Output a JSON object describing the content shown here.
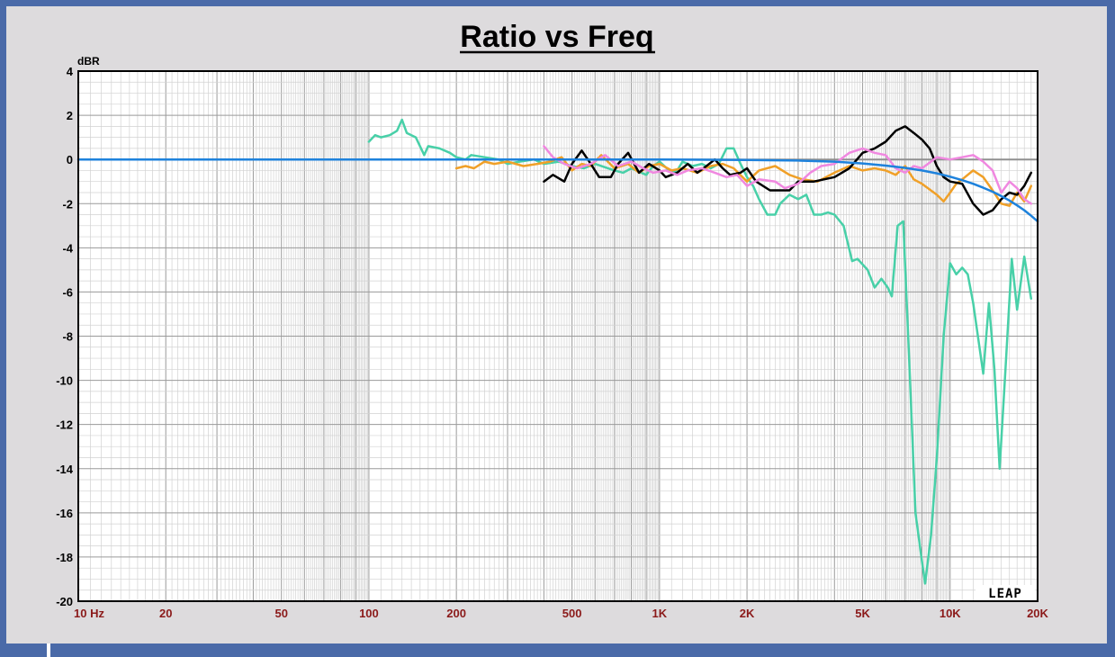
{
  "chart_data": {
    "type": "line",
    "title": "Ratio vs Freq",
    "y_unit": "dBR",
    "x_scale": "log",
    "xlim": [
      10,
      20000
    ],
    "ylim": [
      -20,
      4
    ],
    "grid": true,
    "y_ticks": [
      "4",
      "2",
      "0",
      "-2",
      "-4",
      "-6",
      "-8",
      "-10",
      "-12",
      "-14",
      "-16",
      "-18",
      "-20"
    ],
    "x_ticks": [
      {
        "label": "10  Hz",
        "value": 10
      },
      {
        "label": "20",
        "value": 20
      },
      {
        "label": "50",
        "value": 50
      },
      {
        "label": "100",
        "value": 100
      },
      {
        "label": "200",
        "value": 200
      },
      {
        "label": "500",
        "value": 500
      },
      {
        "label": "1K",
        "value": 1000
      },
      {
        "label": "2K",
        "value": 2000
      },
      {
        "label": "5K",
        "value": 5000
      },
      {
        "label": "10K",
        "value": 10000
      },
      {
        "label": "20K",
        "value": 20000
      }
    ],
    "logo": "LEAP",
    "series": [
      {
        "color": "#909090",
        "points": [
          [
            10,
            0
          ],
          [
            20000,
            0
          ]
        ]
      },
      {
        "color": "#48d0a8",
        "points": [
          [
            100,
            0.8
          ],
          [
            105,
            1.1
          ],
          [
            110,
            1.0
          ],
          [
            118,
            1.1
          ],
          [
            125,
            1.3
          ],
          [
            130,
            1.8
          ],
          [
            135,
            1.2
          ],
          [
            145,
            1.0
          ],
          [
            155,
            0.2
          ],
          [
            160,
            0.6
          ],
          [
            175,
            0.5
          ],
          [
            190,
            0.3
          ],
          [
            200,
            0.1
          ],
          [
            215,
            0
          ],
          [
            225,
            0.2
          ],
          [
            250,
            0.1
          ],
          [
            280,
            0
          ],
          [
            300,
            -0.2
          ],
          [
            330,
            -0.1
          ],
          [
            370,
            0
          ],
          [
            400,
            -0.2
          ],
          [
            450,
            -0.1
          ],
          [
            500,
            -0.3
          ],
          [
            550,
            -0.4
          ],
          [
            600,
            -0.2
          ],
          [
            700,
            -0.5
          ],
          [
            750,
            -0.6
          ],
          [
            800,
            -0.4
          ],
          [
            900,
            -0.7
          ],
          [
            950,
            -0.3
          ],
          [
            1000,
            -0.1
          ],
          [
            1100,
            -0.6
          ],
          [
            1150,
            -0.5
          ],
          [
            1200,
            -0.1
          ],
          [
            1300,
            -0.3
          ],
          [
            1400,
            -0.2
          ],
          [
            1500,
            -0.4
          ],
          [
            1600,
            -0.2
          ],
          [
            1700,
            0.5
          ],
          [
            1800,
            0.5
          ],
          [
            1900,
            -0.2
          ],
          [
            2000,
            -0.8
          ],
          [
            2100,
            -1.2
          ],
          [
            2200,
            -1.8
          ],
          [
            2350,
            -2.5
          ],
          [
            2500,
            -2.5
          ],
          [
            2600,
            -2.0
          ],
          [
            2800,
            -1.6
          ],
          [
            3000,
            -1.8
          ],
          [
            3200,
            -1.6
          ],
          [
            3400,
            -2.5
          ],
          [
            3600,
            -2.5
          ],
          [
            3800,
            -2.4
          ],
          [
            4000,
            -2.5
          ],
          [
            4300,
            -3.0
          ],
          [
            4600,
            -4.6
          ],
          [
            4800,
            -4.5
          ],
          [
            5200,
            -5.0
          ],
          [
            5500,
            -5.8
          ],
          [
            5800,
            -5.4
          ],
          [
            6100,
            -5.8
          ],
          [
            6300,
            -6.2
          ],
          [
            6600,
            -3.0
          ],
          [
            6900,
            -2.8
          ],
          [
            7200,
            -8.5
          ],
          [
            7600,
            -16.0
          ],
          [
            8000,
            -18.2
          ],
          [
            8200,
            -19.2
          ],
          [
            8600,
            -17.0
          ],
          [
            9000,
            -13.5
          ],
          [
            9500,
            -8.0
          ],
          [
            10000,
            -4.7
          ],
          [
            10500,
            -5.2
          ],
          [
            11000,
            -4.9
          ],
          [
            11500,
            -5.2
          ],
          [
            12000,
            -6.5
          ],
          [
            13000,
            -9.7
          ],
          [
            13600,
            -6.5
          ],
          [
            14200,
            -9.5
          ],
          [
            14800,
            -14.0
          ],
          [
            15500,
            -9.5
          ],
          [
            16300,
            -4.5
          ],
          [
            17000,
            -6.8
          ],
          [
            18000,
            -4.4
          ],
          [
            19000,
            -6.3
          ]
        ]
      },
      {
        "color": "#f0a028",
        "points": [
          [
            200,
            -0.4
          ],
          [
            215,
            -0.3
          ],
          [
            230,
            -0.4
          ],
          [
            250,
            -0.1
          ],
          [
            270,
            -0.2
          ],
          [
            300,
            -0.1
          ],
          [
            340,
            -0.3
          ],
          [
            380,
            -0.2
          ],
          [
            420,
            -0.1
          ],
          [
            460,
            0.1
          ],
          [
            500,
            -0.5
          ],
          [
            540,
            -0.2
          ],
          [
            580,
            -0.3
          ],
          [
            630,
            0.2
          ],
          [
            700,
            -0.4
          ],
          [
            780,
            -0.2
          ],
          [
            850,
            -0.6
          ],
          [
            920,
            -0.3
          ],
          [
            1000,
            -0.2
          ],
          [
            1100,
            -0.5
          ],
          [
            1200,
            -0.4
          ],
          [
            1350,
            -0.6
          ],
          [
            1500,
            -0.3
          ],
          [
            1650,
            -0.2
          ],
          [
            1800,
            -0.4
          ],
          [
            2000,
            -1.0
          ],
          [
            2200,
            -0.5
          ],
          [
            2500,
            -0.3
          ],
          [
            2800,
            -0.7
          ],
          [
            3100,
            -0.9
          ],
          [
            3500,
            -1.0
          ],
          [
            4000,
            -0.6
          ],
          [
            4500,
            -0.3
          ],
          [
            5000,
            -0.5
          ],
          [
            5500,
            -0.4
          ],
          [
            6000,
            -0.5
          ],
          [
            6500,
            -0.7
          ],
          [
            7000,
            -0.3
          ],
          [
            7500,
            -0.9
          ],
          [
            8000,
            -1.1
          ],
          [
            9000,
            -1.6
          ],
          [
            9500,
            -1.9
          ],
          [
            10000,
            -1.5
          ],
          [
            10500,
            -1.1
          ],
          [
            11000,
            -0.9
          ],
          [
            12000,
            -0.5
          ],
          [
            13000,
            -0.8
          ],
          [
            14000,
            -1.4
          ],
          [
            15000,
            -2.0
          ],
          [
            16000,
            -2.1
          ],
          [
            17000,
            -1.5
          ],
          [
            18000,
            -1.9
          ],
          [
            19000,
            -1.2
          ]
        ]
      },
      {
        "color": "#000000",
        "points": [
          [
            400,
            -1.0
          ],
          [
            430,
            -0.7
          ],
          [
            470,
            -1.0
          ],
          [
            500,
            -0.2
          ],
          [
            540,
            0.4
          ],
          [
            580,
            -0.2
          ],
          [
            620,
            -0.8
          ],
          [
            680,
            -0.8
          ],
          [
            720,
            -0.2
          ],
          [
            780,
            0.3
          ],
          [
            850,
            -0.6
          ],
          [
            920,
            -0.2
          ],
          [
            1000,
            -0.5
          ],
          [
            1050,
            -0.8
          ],
          [
            1150,
            -0.6
          ],
          [
            1250,
            -0.2
          ],
          [
            1350,
            -0.6
          ],
          [
            1450,
            -0.3
          ],
          [
            1550,
            0
          ],
          [
            1650,
            -0.4
          ],
          [
            1750,
            -0.7
          ],
          [
            1900,
            -0.6
          ],
          [
            2000,
            -0.4
          ],
          [
            2150,
            -1.0
          ],
          [
            2400,
            -1.4
          ],
          [
            2800,
            -1.4
          ],
          [
            3000,
            -1.0
          ],
          [
            3400,
            -1.0
          ],
          [
            4000,
            -0.8
          ],
          [
            4500,
            -0.4
          ],
          [
            5000,
            0.3
          ],
          [
            5500,
            0.5
          ],
          [
            6000,
            0.8
          ],
          [
            6500,
            1.3
          ],
          [
            7000,
            1.5
          ],
          [
            7500,
            1.2
          ],
          [
            8000,
            0.9
          ],
          [
            8500,
            0.5
          ],
          [
            9000,
            -0.3
          ],
          [
            9500,
            -0.8
          ],
          [
            10000,
            -1.0
          ],
          [
            11000,
            -1.1
          ],
          [
            12000,
            -2.0
          ],
          [
            13000,
            -2.5
          ],
          [
            14000,
            -2.3
          ],
          [
            15000,
            -1.8
          ],
          [
            16000,
            -1.5
          ],
          [
            17000,
            -1.6
          ],
          [
            18000,
            -1.2
          ],
          [
            19000,
            -0.6
          ]
        ]
      },
      {
        "color": "#f088e0",
        "points": [
          [
            400,
            0.6
          ],
          [
            430,
            0.1
          ],
          [
            470,
            -0.2
          ],
          [
            520,
            -0.4
          ],
          [
            580,
            -0.2
          ],
          [
            650,
            0.2
          ],
          [
            720,
            -0.3
          ],
          [
            800,
            -0.1
          ],
          [
            880,
            -0.4
          ],
          [
            950,
            -0.6
          ],
          [
            1050,
            -0.5
          ],
          [
            1150,
            -0.7
          ],
          [
            1250,
            -0.5
          ],
          [
            1400,
            -0.4
          ],
          [
            1550,
            -0.6
          ],
          [
            1700,
            -0.8
          ],
          [
            1850,
            -0.7
          ],
          [
            2000,
            -1.2
          ],
          [
            2200,
            -0.9
          ],
          [
            2500,
            -1.0
          ],
          [
            2700,
            -1.3
          ],
          [
            3000,
            -1.1
          ],
          [
            3300,
            -0.6
          ],
          [
            3600,
            -0.3
          ],
          [
            4000,
            -0.2
          ],
          [
            4500,
            0.3
          ],
          [
            5000,
            0.5
          ],
          [
            5500,
            0.3
          ],
          [
            6000,
            0.2
          ],
          [
            6500,
            -0.4
          ],
          [
            7000,
            -0.6
          ],
          [
            7500,
            -0.3
          ],
          [
            8000,
            -0.4
          ],
          [
            9000,
            0.1
          ],
          [
            10000,
            0
          ],
          [
            11000,
            0.1
          ],
          [
            12000,
            0.2
          ],
          [
            13000,
            -0.1
          ],
          [
            14000,
            -0.5
          ],
          [
            15000,
            -1.5
          ],
          [
            16000,
            -1.0
          ],
          [
            17000,
            -1.3
          ],
          [
            18000,
            -1.8
          ],
          [
            19000,
            -2.0
          ]
        ]
      },
      {
        "color": "#1e82dc",
        "points": [
          [
            10,
            0
          ],
          [
            1000,
            0
          ],
          [
            2000,
            -0.02
          ],
          [
            3000,
            -0.05
          ],
          [
            4000,
            -0.1
          ],
          [
            5000,
            -0.18
          ],
          [
            6000,
            -0.28
          ],
          [
            7000,
            -0.38
          ],
          [
            8000,
            -0.5
          ],
          [
            9000,
            -0.63
          ],
          [
            10000,
            -0.78
          ],
          [
            11000,
            -0.94
          ],
          [
            12000,
            -1.1
          ],
          [
            13000,
            -1.28
          ],
          [
            14000,
            -1.46
          ],
          [
            15000,
            -1.66
          ],
          [
            16000,
            -1.86
          ],
          [
            17000,
            -2.08
          ],
          [
            18000,
            -2.3
          ],
          [
            19000,
            -2.55
          ],
          [
            20000,
            -2.8
          ]
        ]
      }
    ]
  }
}
